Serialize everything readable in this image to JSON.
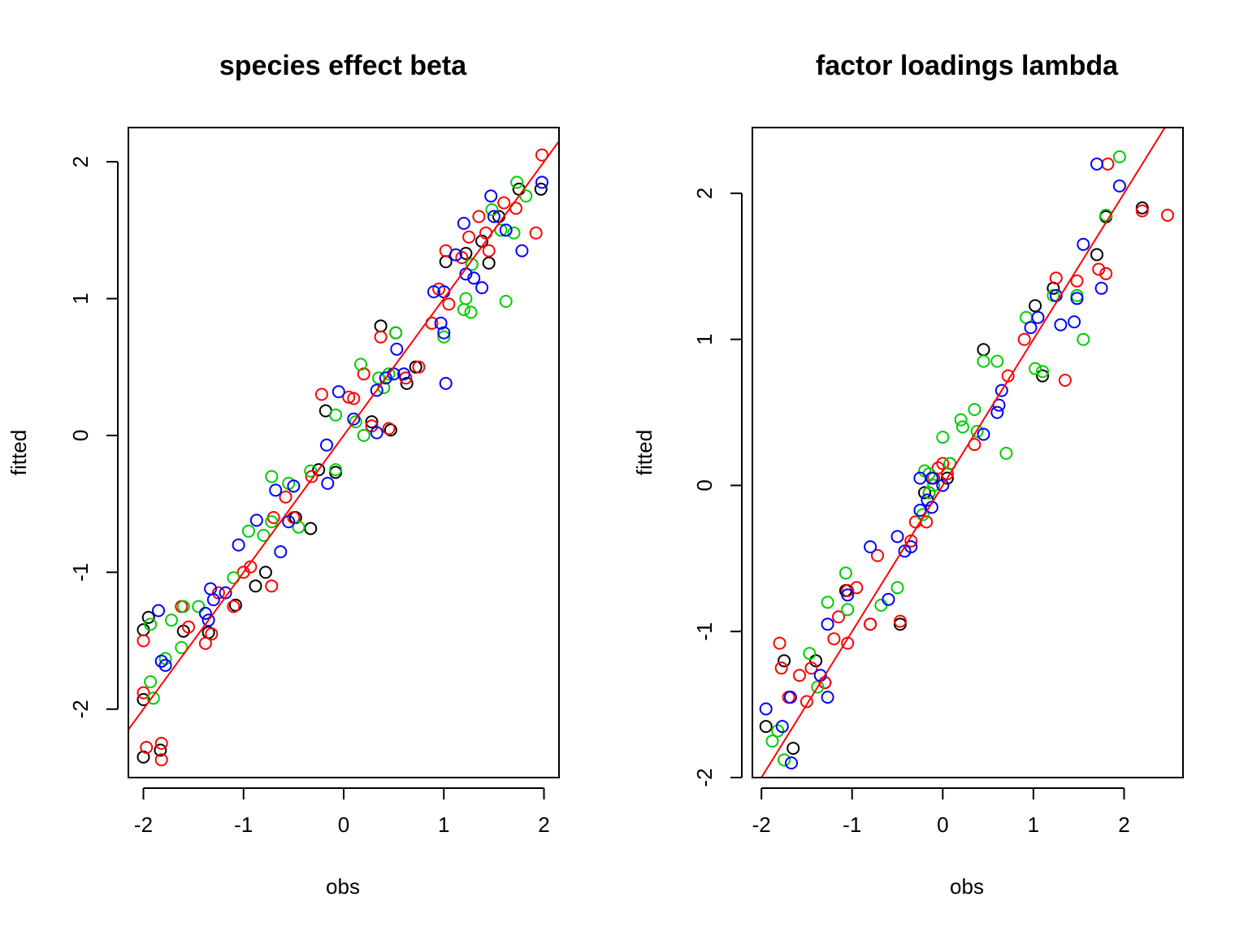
{
  "chart_data": [
    {
      "type": "scatter",
      "title": "species effect beta",
      "xlabel": "obs",
      "ylabel": "fitted",
      "xlim": [
        -2.15,
        2.15
      ],
      "ylim": [
        -2.5,
        2.25
      ],
      "xticks": [
        "-2",
        "-1",
        "0",
        "1",
        "2"
      ],
      "yticks": [
        "-2",
        "-1",
        "0",
        "1",
        "2"
      ],
      "reference_line": {
        "type": "abline",
        "intercept": 0,
        "slope": 1,
        "color": "#ff0000"
      },
      "series_colors": [
        "#000000",
        "#ff0000",
        "#00cd00",
        "#0000ff"
      ],
      "series": [
        {
          "color": "#000000",
          "points": [
            [
              -2.0,
              -1.42
            ],
            [
              -1.95,
              -1.33
            ],
            [
              -2.0,
              -1.93
            ],
            [
              -1.6,
              -1.43
            ],
            [
              -1.35,
              -1.44
            ],
            [
              -1.08,
              -1.24
            ],
            [
              -0.88,
              -1.1
            ],
            [
              -0.78,
              -1.0
            ],
            [
              -0.48,
              -0.6
            ],
            [
              -0.33,
              -0.68
            ],
            [
              -0.25,
              -0.25
            ],
            [
              -0.08,
              -0.27
            ],
            [
              0.28,
              0.1
            ],
            [
              0.37,
              0.8
            ],
            [
              0.47,
              0.04
            ],
            [
              0.52,
              0.75
            ],
            [
              0.63,
              0.38
            ],
            [
              1.02,
              1.27
            ],
            [
              1.38,
              1.42
            ],
            [
              1.45,
              1.26
            ],
            [
              1.75,
              1.8
            ],
            [
              1.97,
              1.8
            ],
            [
              -1.83,
              -2.3
            ],
            [
              -2.0,
              -2.35
            ],
            [
              0.72,
              0.5
            ],
            [
              -0.18,
              0.18
            ],
            [
              1.22,
              1.33
            ],
            [
              1.55,
              1.6
            ]
          ]
        },
        {
          "color": "#ff0000",
          "points": [
            [
              -2.0,
              -1.5
            ],
            [
              -2.0,
              -1.88
            ],
            [
              -1.97,
              -2.28
            ],
            [
              -1.82,
              -2.25
            ],
            [
              -1.82,
              -2.37
            ],
            [
              -1.62,
              -1.25
            ],
            [
              -1.55,
              -1.4
            ],
            [
              -1.38,
              -1.52
            ],
            [
              -1.32,
              -1.45
            ],
            [
              -1.25,
              -1.15
            ],
            [
              -1.1,
              -1.25
            ],
            [
              -1.0,
              -1.0
            ],
            [
              -0.93,
              -0.96
            ],
            [
              -0.72,
              -1.1
            ],
            [
              -0.7,
              -0.6
            ],
            [
              -0.58,
              -0.45
            ],
            [
              -0.5,
              -0.6
            ],
            [
              -0.32,
              -0.3
            ],
            [
              0.05,
              0.28
            ],
            [
              0.1,
              0.27
            ],
            [
              0.28,
              0.07
            ],
            [
              0.37,
              0.72
            ],
            [
              0.45,
              0.05
            ],
            [
              0.62,
              0.42
            ],
            [
              0.75,
              0.5
            ],
            [
              0.88,
              0.82
            ],
            [
              0.95,
              1.07
            ],
            [
              1.02,
              1.35
            ],
            [
              1.05,
              0.96
            ],
            [
              1.18,
              1.3
            ],
            [
              1.35,
              1.6
            ],
            [
              1.42,
              1.48
            ],
            [
              1.45,
              1.35
            ],
            [
              1.72,
              1.66
            ],
            [
              1.92,
              1.48
            ],
            [
              1.98,
              2.05
            ],
            [
              -0.22,
              0.3
            ],
            [
              0.2,
              0.45
            ],
            [
              1.25,
              1.45
            ],
            [
              1.6,
              1.7
            ]
          ]
        },
        {
          "color": "#00cd00",
          "points": [
            [
              -1.93,
              -1.38
            ],
            [
              -1.93,
              -1.8
            ],
            [
              -1.9,
              -1.92
            ],
            [
              -1.78,
              -1.63
            ],
            [
              -1.72,
              -1.35
            ],
            [
              -1.62,
              -1.55
            ],
            [
              -1.6,
              -1.25
            ],
            [
              -1.45,
              -1.25
            ],
            [
              -1.1,
              -1.04
            ],
            [
              -0.95,
              -0.7
            ],
            [
              -0.8,
              -0.73
            ],
            [
              -0.72,
              -0.3
            ],
            [
              -0.72,
              -0.63
            ],
            [
              -0.45,
              -0.67
            ],
            [
              -0.33,
              -0.26
            ],
            [
              -0.08,
              -0.25
            ],
            [
              -0.08,
              0.15
            ],
            [
              0.12,
              0.1
            ],
            [
              0.17,
              0.52
            ],
            [
              0.2,
              0.0
            ],
            [
              0.35,
              0.42
            ],
            [
              0.4,
              0.35
            ],
            [
              0.52,
              0.75
            ],
            [
              1.0,
              0.72
            ],
            [
              1.2,
              0.92
            ],
            [
              1.22,
              1.0
            ],
            [
              1.27,
              0.9
            ],
            [
              1.28,
              1.25
            ],
            [
              1.57,
              1.5
            ],
            [
              1.62,
              0.98
            ],
            [
              1.7,
              1.48
            ],
            [
              1.73,
              1.85
            ],
            [
              1.82,
              1.75
            ],
            [
              0.45,
              0.45
            ],
            [
              -0.55,
              -0.35
            ],
            [
              1.48,
              1.65
            ]
          ]
        },
        {
          "color": "#0000ff",
          "points": [
            [
              -1.85,
              -1.28
            ],
            [
              -1.82,
              -1.65
            ],
            [
              -1.78,
              -1.68
            ],
            [
              -1.38,
              -1.3
            ],
            [
              -1.33,
              -1.12
            ],
            [
              -1.3,
              -1.2
            ],
            [
              -1.18,
              -1.15
            ],
            [
              -1.05,
              -0.8
            ],
            [
              -0.87,
              -0.62
            ],
            [
              -0.68,
              -0.4
            ],
            [
              -0.63,
              -0.85
            ],
            [
              -0.55,
              -0.63
            ],
            [
              -0.5,
              -0.37
            ],
            [
              -0.17,
              -0.07
            ],
            [
              -0.16,
              -0.35
            ],
            [
              -0.05,
              0.32
            ],
            [
              0.1,
              0.12
            ],
            [
              0.33,
              0.33
            ],
            [
              0.33,
              0.02
            ],
            [
              0.5,
              0.45
            ],
            [
              0.53,
              0.63
            ],
            [
              0.6,
              0.45
            ],
            [
              0.9,
              1.05
            ],
            [
              0.97,
              0.82
            ],
            [
              1.0,
              0.75
            ],
            [
              1.02,
              0.38
            ],
            [
              1.12,
              1.32
            ],
            [
              1.2,
              1.55
            ],
            [
              1.22,
              1.18
            ],
            [
              1.3,
              1.15
            ],
            [
              1.38,
              1.08
            ],
            [
              1.47,
              1.75
            ],
            [
              1.5,
              1.6
            ],
            [
              1.62,
              1.5
            ],
            [
              1.78,
              1.35
            ],
            [
              1.98,
              1.85
            ],
            [
              -1.35,
              -1.35
            ],
            [
              0.42,
              0.42
            ],
            [
              1.0,
              1.05
            ]
          ]
        }
      ]
    },
    {
      "type": "scatter",
      "title": "factor loadings lambda",
      "xlabel": "obs",
      "ylabel": "fitted",
      "xlim": [
        -2.1,
        2.65
      ],
      "ylim": [
        -2.0,
        2.45
      ],
      "xticks": [
        "-2",
        "-1",
        "0",
        "1",
        "2"
      ],
      "yticks": [
        "-2",
        "-1",
        "0",
        "1",
        "2"
      ],
      "reference_line": {
        "type": "abline",
        "intercept": 0,
        "slope": 1,
        "color": "#ff0000"
      },
      "series_colors": [
        "#000000",
        "#ff0000",
        "#00cd00",
        "#0000ff"
      ],
      "series": [
        {
          "color": "#000000",
          "points": [
            [
              -1.95,
              -1.65
            ],
            [
              -1.75,
              -1.2
            ],
            [
              -1.65,
              -1.8
            ],
            [
              -1.4,
              -1.2
            ],
            [
              -1.07,
              -0.72
            ],
            [
              -0.8,
              -0.95
            ],
            [
              -0.47,
              -0.95
            ],
            [
              -0.2,
              -0.05
            ],
            [
              0.45,
              0.93
            ],
            [
              1.02,
              1.23
            ],
            [
              1.1,
              0.75
            ],
            [
              1.22,
              1.35
            ],
            [
              1.7,
              1.58
            ],
            [
              1.8,
              1.84
            ],
            [
              2.2,
              1.9
            ],
            [
              -1.3,
              -1.35
            ],
            [
              0.05,
              0.05
            ]
          ]
        },
        {
          "color": "#ff0000",
          "points": [
            [
              -1.8,
              -1.08
            ],
            [
              -1.78,
              -1.25
            ],
            [
              -1.7,
              -1.45
            ],
            [
              -1.58,
              -1.3
            ],
            [
              -1.5,
              -1.48
            ],
            [
              -1.45,
              -1.25
            ],
            [
              -1.3,
              -1.35
            ],
            [
              -1.2,
              -1.05
            ],
            [
              -1.15,
              -0.9
            ],
            [
              -1.05,
              -1.08
            ],
            [
              -1.05,
              -0.72
            ],
            [
              -0.95,
              -0.7
            ],
            [
              -0.8,
              -0.95
            ],
            [
              -0.72,
              -0.48
            ],
            [
              -0.47,
              -0.93
            ],
            [
              -0.35,
              -0.38
            ],
            [
              -0.3,
              -0.25
            ],
            [
              -0.15,
              -0.05
            ],
            [
              0.0,
              0.15
            ],
            [
              0.05,
              0.08
            ],
            [
              0.35,
              0.28
            ],
            [
              0.72,
              0.75
            ],
            [
              0.9,
              1.0
            ],
            [
              1.25,
              1.42
            ],
            [
              1.35,
              0.72
            ],
            [
              1.48,
              1.4
            ],
            [
              1.72,
              1.48
            ],
            [
              1.8,
              1.45
            ],
            [
              1.82,
              2.2
            ],
            [
              2.2,
              1.88
            ],
            [
              2.48,
              1.85
            ],
            [
              -0.05,
              0.12
            ],
            [
              -0.1,
              0.05
            ],
            [
              -0.18,
              -0.25
            ],
            [
              0.08,
              0.15
            ]
          ]
        },
        {
          "color": "#00cd00",
          "points": [
            [
              -1.88,
              -1.75
            ],
            [
              -1.82,
              -1.68
            ],
            [
              -1.75,
              -1.88
            ],
            [
              -1.47,
              -1.15
            ],
            [
              -1.38,
              -1.38
            ],
            [
              -1.27,
              -0.8
            ],
            [
              -1.07,
              -0.6
            ],
            [
              -1.05,
              -0.85
            ],
            [
              -0.68,
              -0.82
            ],
            [
              -0.5,
              -0.7
            ],
            [
              -0.22,
              -0.2
            ],
            [
              -0.2,
              0.1
            ],
            [
              -0.15,
              -0.05
            ],
            [
              0.0,
              0.33
            ],
            [
              0.08,
              0.15
            ],
            [
              0.2,
              0.45
            ],
            [
              0.22,
              0.4
            ],
            [
              0.35,
              0.52
            ],
            [
              0.38,
              0.37
            ],
            [
              0.45,
              0.85
            ],
            [
              0.6,
              0.85
            ],
            [
              0.7,
              0.22
            ],
            [
              0.92,
              1.15
            ],
            [
              1.02,
              0.8
            ],
            [
              1.1,
              0.78
            ],
            [
              1.22,
              1.3
            ],
            [
              1.48,
              1.3
            ],
            [
              1.55,
              1.0
            ],
            [
              1.8,
              1.85
            ],
            [
              1.95,
              2.25
            ],
            [
              -0.15,
              0.08
            ],
            [
              -0.1,
              0.0
            ]
          ]
        },
        {
          "color": "#0000ff",
          "points": [
            [
              -1.95,
              -1.53
            ],
            [
              -1.77,
              -1.65
            ],
            [
              -1.68,
              -1.45
            ],
            [
              -1.67,
              -1.9
            ],
            [
              -1.35,
              -1.3
            ],
            [
              -1.27,
              -1.45
            ],
            [
              -1.27,
              -0.95
            ],
            [
              -1.05,
              -0.75
            ],
            [
              -0.8,
              -0.42
            ],
            [
              -0.6,
              -0.78
            ],
            [
              -0.5,
              -0.35
            ],
            [
              -0.42,
              -0.45
            ],
            [
              -0.35,
              -0.42
            ],
            [
              -0.25,
              -0.17
            ],
            [
              -0.17,
              -0.1
            ],
            [
              -0.12,
              -0.15
            ],
            [
              -0.12,
              0.05
            ],
            [
              0.0,
              0.0
            ],
            [
              0.45,
              0.35
            ],
            [
              0.6,
              0.5
            ],
            [
              0.65,
              0.65
            ],
            [
              0.97,
              1.08
            ],
            [
              1.05,
              1.15
            ],
            [
              1.25,
              1.3
            ],
            [
              1.3,
              1.1
            ],
            [
              1.45,
              1.12
            ],
            [
              1.48,
              1.28
            ],
            [
              1.55,
              1.65
            ],
            [
              1.7,
              2.2
            ],
            [
              1.75,
              1.35
            ],
            [
              1.95,
              2.05
            ],
            [
              0.62,
              0.55
            ],
            [
              -0.25,
              0.05
            ]
          ]
        }
      ]
    }
  ]
}
